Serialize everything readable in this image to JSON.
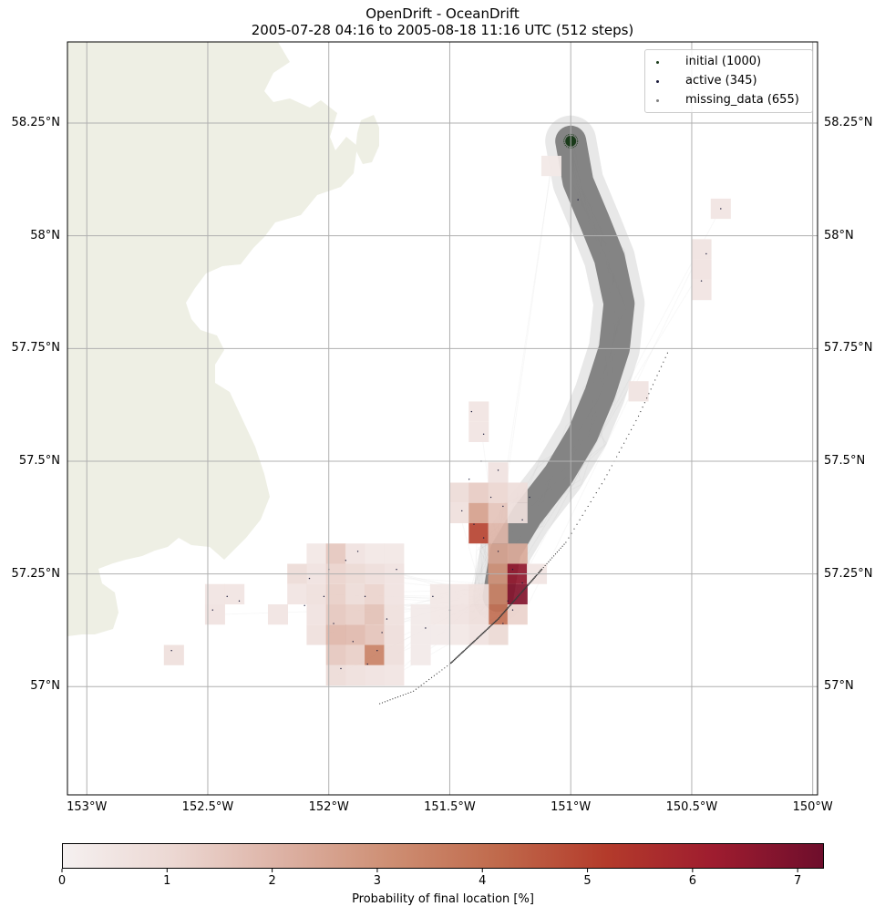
{
  "title": "OpenDrift - OceanDrift",
  "subtitle": "2005-07-28 04:16 to 2005-08-18 11:16 UTC (512 steps)",
  "colors": {
    "land": "#eeefe4",
    "grid": "#b0b0b0",
    "track": "#808080",
    "initial": "#1a3a1a",
    "active": "#1a1a3a",
    "missing": "#7f7f7f"
  },
  "icons": {
    "initial": "dot-marker-icon",
    "active": "dot-marker-icon",
    "missing": "dot-marker-icon"
  },
  "chart_data": {
    "type": "heatmap",
    "title": "OpenDrift - OceanDrift",
    "subtitle": "2005-07-28 04:16 to 2005-08-18 11:16 UTC (512 steps)",
    "xlim": [
      -153.08,
      -149.98
    ],
    "ylim": [
      56.76,
      58.43
    ],
    "lat_ticks": [
      {
        "value": 58.25,
        "label": "58.25°N"
      },
      {
        "value": 58.0,
        "label": "58°N"
      },
      {
        "value": 57.75,
        "label": "57.75°N"
      },
      {
        "value": 57.5,
        "label": "57.5°N"
      },
      {
        "value": 57.25,
        "label": "57.25°N"
      },
      {
        "value": 57.0,
        "label": "57°N"
      }
    ],
    "lon_ticks": [
      {
        "value": -153.0,
        "label": "153°W"
      },
      {
        "value": -152.5,
        "label": "152.5°W"
      },
      {
        "value": -152.0,
        "label": "152°W"
      },
      {
        "value": -151.5,
        "label": "151.5°W"
      },
      {
        "value": -151.0,
        "label": "151°W"
      },
      {
        "value": -150.5,
        "label": "150.5°W"
      },
      {
        "value": -150.0,
        "label": "150°W"
      }
    ],
    "grid": true,
    "legend_position": "top-right",
    "legend": [
      {
        "key": "initial",
        "label": "initial (1000)"
      },
      {
        "key": "active",
        "label": "active (345)"
      },
      {
        "key": "missing",
        "label": "missing_data (655)"
      }
    ],
    "seed": {
      "lon": -151.0,
      "lat": 58.21
    },
    "track_centerline": [
      [
        -151.0,
        58.21
      ],
      [
        -150.97,
        58.12
      ],
      [
        -150.9,
        58.03
      ],
      [
        -150.84,
        57.95
      ],
      [
        -150.8,
        57.85
      ],
      [
        -150.82,
        57.75
      ],
      [
        -150.88,
        57.65
      ],
      [
        -150.95,
        57.56
      ],
      [
        -151.05,
        57.47
      ],
      [
        -151.18,
        57.38
      ],
      [
        -151.27,
        57.3
      ],
      [
        -151.3,
        57.2
      ]
    ],
    "missing_front": [
      [
        -150.6,
        57.74
      ],
      [
        -150.72,
        57.6
      ],
      [
        -150.86,
        57.46
      ],
      [
        -151.02,
        57.32
      ],
      [
        -151.12,
        57.26
      ],
      [
        -151.3,
        57.15
      ],
      [
        -151.5,
        57.05
      ],
      [
        -151.65,
        56.99
      ],
      [
        -151.8,
        56.96
      ]
    ],
    "cell_size": {
      "lon": 0.083,
      "lat": 0.045
    },
    "cells": [
      {
        "lon": -151.08,
        "lat": 58.155,
        "p": 0.35
      },
      {
        "lon": -150.38,
        "lat": 58.06,
        "p": 0.5
      },
      {
        "lon": -150.46,
        "lat": 57.97,
        "p": 0.55
      },
      {
        "lon": -150.46,
        "lat": 57.925,
        "p": 0.6
      },
      {
        "lon": -150.46,
        "lat": 57.88,
        "p": 0.5
      },
      {
        "lon": -150.72,
        "lat": 57.655,
        "p": 0.55
      },
      {
        "lon": -151.38,
        "lat": 57.61,
        "p": 0.5
      },
      {
        "lon": -151.38,
        "lat": 57.565,
        "p": 0.5
      },
      {
        "lon": -151.3,
        "lat": 57.475,
        "p": 0.6
      },
      {
        "lon": -151.46,
        "lat": 57.43,
        "p": 0.9
      },
      {
        "lon": -151.38,
        "lat": 57.43,
        "p": 1.4
      },
      {
        "lon": -151.3,
        "lat": 57.43,
        "p": 1.1
      },
      {
        "lon": -151.22,
        "lat": 57.43,
        "p": 0.8
      },
      {
        "lon": -151.46,
        "lat": 57.385,
        "p": 0.7
      },
      {
        "lon": -151.38,
        "lat": 57.385,
        "p": 2.6
      },
      {
        "lon": -151.3,
        "lat": 57.385,
        "p": 1.6
      },
      {
        "lon": -151.22,
        "lat": 57.385,
        "p": 0.7
      },
      {
        "lon": -151.38,
        "lat": 57.34,
        "p": 5.0
      },
      {
        "lon": -151.3,
        "lat": 57.34,
        "p": 2.0
      },
      {
        "lon": -151.3,
        "lat": 57.295,
        "p": 2.5
      },
      {
        "lon": -151.22,
        "lat": 57.295,
        "p": 2.3
      },
      {
        "lon": -151.3,
        "lat": 57.25,
        "p": 3.0
      },
      {
        "lon": -151.22,
        "lat": 57.25,
        "p": 6.5
      },
      {
        "lon": -151.14,
        "lat": 57.25,
        "p": 0.5
      },
      {
        "lon": -151.3,
        "lat": 57.205,
        "p": 3.5
      },
      {
        "lon": -151.22,
        "lat": 57.205,
        "p": 6.8
      },
      {
        "lon": -151.3,
        "lat": 57.16,
        "p": 4.0
      },
      {
        "lon": -151.22,
        "lat": 57.16,
        "p": 1.2
      },
      {
        "lon": -151.38,
        "lat": 57.16,
        "p": 0.8
      },
      {
        "lon": -151.46,
        "lat": 57.16,
        "p": 0.6
      },
      {
        "lon": -151.54,
        "lat": 57.16,
        "p": 0.4
      },
      {
        "lon": -151.46,
        "lat": 57.205,
        "p": 0.5
      },
      {
        "lon": -151.54,
        "lat": 57.205,
        "p": 0.4
      },
      {
        "lon": -151.38,
        "lat": 57.205,
        "p": 0.7
      },
      {
        "lon": -151.3,
        "lat": 57.115,
        "p": 1.0
      },
      {
        "lon": -151.38,
        "lat": 57.115,
        "p": 0.6
      },
      {
        "lon": -151.46,
        "lat": 57.115,
        "p": 0.4
      },
      {
        "lon": -151.54,
        "lat": 57.115,
        "p": 0.3
      },
      {
        "lon": -151.62,
        "lat": 57.115,
        "p": 0.3
      },
      {
        "lon": -151.62,
        "lat": 57.16,
        "p": 0.3
      },
      {
        "lon": -151.62,
        "lat": 57.07,
        "p": 0.3
      },
      {
        "lon": -152.05,
        "lat": 57.295,
        "p": 0.4
      },
      {
        "lon": -151.97,
        "lat": 57.295,
        "p": 1.5
      },
      {
        "lon": -151.89,
        "lat": 57.295,
        "p": 0.6
      },
      {
        "lon": -151.81,
        "lat": 57.295,
        "p": 0.4
      },
      {
        "lon": -151.73,
        "lat": 57.295,
        "p": 0.4
      },
      {
        "lon": -152.13,
        "lat": 57.25,
        "p": 0.9
      },
      {
        "lon": -152.05,
        "lat": 57.25,
        "p": 0.6
      },
      {
        "lon": -151.97,
        "lat": 57.25,
        "p": 1.2
      },
      {
        "lon": -151.89,
        "lat": 57.25,
        "p": 1.0
      },
      {
        "lon": -151.81,
        "lat": 57.25,
        "p": 0.8
      },
      {
        "lon": -151.73,
        "lat": 57.25,
        "p": 0.6
      },
      {
        "lon": -152.13,
        "lat": 57.205,
        "p": 0.5
      },
      {
        "lon": -152.05,
        "lat": 57.205,
        "p": 0.7
      },
      {
        "lon": -151.97,
        "lat": 57.205,
        "p": 1.3
      },
      {
        "lon": -151.89,
        "lat": 57.205,
        "p": 0.9
      },
      {
        "lon": -151.81,
        "lat": 57.205,
        "p": 1.2
      },
      {
        "lon": -151.73,
        "lat": 57.205,
        "p": 0.6
      },
      {
        "lon": -152.05,
        "lat": 57.16,
        "p": 0.6
      },
      {
        "lon": -151.97,
        "lat": 57.16,
        "p": 1.5
      },
      {
        "lon": -151.89,
        "lat": 57.16,
        "p": 1.3
      },
      {
        "lon": -151.81,
        "lat": 57.16,
        "p": 1.7
      },
      {
        "lon": -151.73,
        "lat": 57.16,
        "p": 0.7
      },
      {
        "lon": -152.05,
        "lat": 57.115,
        "p": 0.7
      },
      {
        "lon": -151.97,
        "lat": 57.115,
        "p": 2.0
      },
      {
        "lon": -151.89,
        "lat": 57.115,
        "p": 1.9
      },
      {
        "lon": -151.81,
        "lat": 57.115,
        "p": 1.6
      },
      {
        "lon": -151.73,
        "lat": 57.115,
        "p": 0.8
      },
      {
        "lon": -151.97,
        "lat": 57.07,
        "p": 1.5
      },
      {
        "lon": -151.89,
        "lat": 57.07,
        "p": 1.3
      },
      {
        "lon": -151.81,
        "lat": 57.07,
        "p": 3.5
      },
      {
        "lon": -151.73,
        "lat": 57.07,
        "p": 0.8
      },
      {
        "lon": -151.97,
        "lat": 57.025,
        "p": 0.9
      },
      {
        "lon": -151.89,
        "lat": 57.025,
        "p": 0.7
      },
      {
        "lon": -151.81,
        "lat": 57.025,
        "p": 0.6
      },
      {
        "lon": -151.73,
        "lat": 57.025,
        "p": 0.5
      },
      {
        "lon": -152.47,
        "lat": 57.205,
        "p": 0.5
      },
      {
        "lon": -152.39,
        "lat": 57.205,
        "p": 0.5
      },
      {
        "lon": -152.47,
        "lat": 57.16,
        "p": 0.6
      },
      {
        "lon": -152.21,
        "lat": 57.16,
        "p": 0.5
      },
      {
        "lon": -152.64,
        "lat": 57.07,
        "p": 0.7
      }
    ],
    "active_points": [
      [
        -151.24,
        57.26
      ],
      [
        -151.2,
        57.23
      ],
      [
        -151.26,
        57.19
      ],
      [
        -151.3,
        57.3
      ],
      [
        -151.36,
        57.33
      ],
      [
        -151.4,
        57.36
      ],
      [
        -151.33,
        57.42
      ],
      [
        -151.28,
        57.4
      ],
      [
        -151.42,
        57.46
      ],
      [
        -151.37,
        57.5
      ],
      [
        -151.3,
        57.48
      ],
      [
        -151.45,
        57.39
      ],
      [
        -151.2,
        57.37
      ],
      [
        -151.17,
        57.42
      ],
      [
        -151.34,
        57.25
      ],
      [
        -151.93,
        57.28
      ],
      [
        -151.85,
        57.2
      ],
      [
        -151.98,
        57.14
      ],
      [
        -151.9,
        57.1
      ],
      [
        -151.8,
        57.08
      ],
      [
        -152.02,
        57.2
      ],
      [
        -152.08,
        57.24
      ],
      [
        -151.76,
        57.15
      ],
      [
        -151.95,
        57.04
      ],
      [
        -151.84,
        57.05
      ],
      [
        -152.42,
        57.2
      ],
      [
        -152.48,
        57.17
      ],
      [
        -152.37,
        57.19
      ],
      [
        -152.65,
        57.08
      ],
      [
        -151.41,
        57.61
      ],
      [
        -151.36,
        57.56
      ],
      [
        -150.97,
        58.08
      ],
      [
        -150.38,
        58.06
      ],
      [
        -150.44,
        57.96
      ],
      [
        -150.46,
        57.9
      ],
      [
        -151.57,
        57.2
      ],
      [
        -151.5,
        57.17
      ],
      [
        -151.6,
        57.13
      ],
      [
        -151.28,
        57.14
      ],
      [
        -151.24,
        57.17
      ],
      [
        -152.1,
        57.18
      ],
      [
        -152.0,
        57.26
      ],
      [
        -151.88,
        57.3
      ],
      [
        -151.72,
        57.26
      ],
      [
        -151.78,
        57.12
      ]
    ],
    "colorbar": {
      "label": "Probability of final location [%]",
      "min": 0,
      "max": 7.25,
      "ticks": [
        0,
        1,
        2,
        3,
        4,
        5,
        6,
        7
      ],
      "tick_labels": [
        "0",
        "1",
        "2",
        "3",
        "4",
        "5",
        "6",
        "7"
      ],
      "colors": [
        "#f5f0f0",
        "#ecd8d3",
        "#ddb2a5",
        "#ce8f74",
        "#c06a4c",
        "#b43b2b",
        "#9e1c2f",
        "#6e0e2c"
      ]
    }
  }
}
